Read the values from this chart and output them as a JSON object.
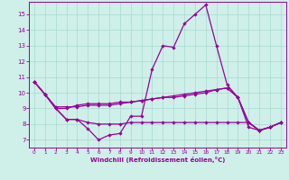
{
  "xlabel": "Windchill (Refroidissement éolien,°C)",
  "background_color": "#cef0e8",
  "grid_color": "#a8d8d0",
  "line_color": "#990099",
  "xlim": [
    -0.5,
    23.5
  ],
  "ylim": [
    6.5,
    15.8
  ],
  "xticks": [
    0,
    1,
    2,
    3,
    4,
    5,
    6,
    7,
    8,
    9,
    10,
    11,
    12,
    13,
    14,
    15,
    16,
    17,
    18,
    19,
    20,
    21,
    22,
    23
  ],
  "yticks": [
    7,
    8,
    9,
    10,
    11,
    12,
    13,
    14,
    15
  ],
  "curve1_x": [
    0,
    1,
    2,
    3,
    4,
    5,
    6,
    7,
    8,
    9,
    10,
    11,
    12,
    13,
    14,
    15,
    16,
    17,
    18,
    19,
    20,
    21,
    22,
    23
  ],
  "curve1_y": [
    10.7,
    9.9,
    9.0,
    8.3,
    8.3,
    7.7,
    7.0,
    7.3,
    7.4,
    8.5,
    8.5,
    11.5,
    13.0,
    12.9,
    14.4,
    15.0,
    15.6,
    13.0,
    10.5,
    9.7,
    7.8,
    7.6,
    7.8,
    8.1
  ],
  "curve2_x": [
    0,
    1,
    2,
    3,
    4,
    5,
    6,
    7,
    8,
    9,
    10,
    11,
    12,
    13,
    14,
    15,
    16,
    17,
    18,
    19,
    20,
    21,
    22,
    23
  ],
  "curve2_y": [
    10.7,
    9.9,
    9.0,
    9.0,
    9.2,
    9.3,
    9.3,
    9.3,
    9.4,
    9.4,
    9.5,
    9.6,
    9.7,
    9.8,
    9.9,
    10.0,
    10.1,
    10.2,
    10.3,
    9.7,
    8.1,
    7.6,
    7.8,
    8.1
  ],
  "curve3_x": [
    0,
    1,
    2,
    3,
    4,
    5,
    6,
    7,
    8,
    9,
    10,
    11,
    12,
    13,
    14,
    15,
    16,
    17,
    18,
    19,
    20,
    21,
    22,
    23
  ],
  "curve3_y": [
    10.7,
    9.9,
    9.1,
    9.1,
    9.1,
    9.2,
    9.2,
    9.2,
    9.3,
    9.4,
    9.5,
    9.6,
    9.7,
    9.7,
    9.8,
    9.9,
    10.0,
    10.2,
    10.3,
    9.7,
    8.1,
    7.6,
    7.8,
    8.1
  ],
  "curve4_x": [
    0,
    1,
    2,
    3,
    4,
    5,
    6,
    7,
    8,
    9,
    10,
    11,
    12,
    13,
    14,
    15,
    16,
    17,
    18,
    19,
    20,
    21,
    22,
    23
  ],
  "curve4_y": [
    10.7,
    9.9,
    9.0,
    8.3,
    8.3,
    8.1,
    8.0,
    8.0,
    8.0,
    8.1,
    8.1,
    8.1,
    8.1,
    8.1,
    8.1,
    8.1,
    8.1,
    8.1,
    8.1,
    8.1,
    8.1,
    7.6,
    7.8,
    8.1
  ]
}
